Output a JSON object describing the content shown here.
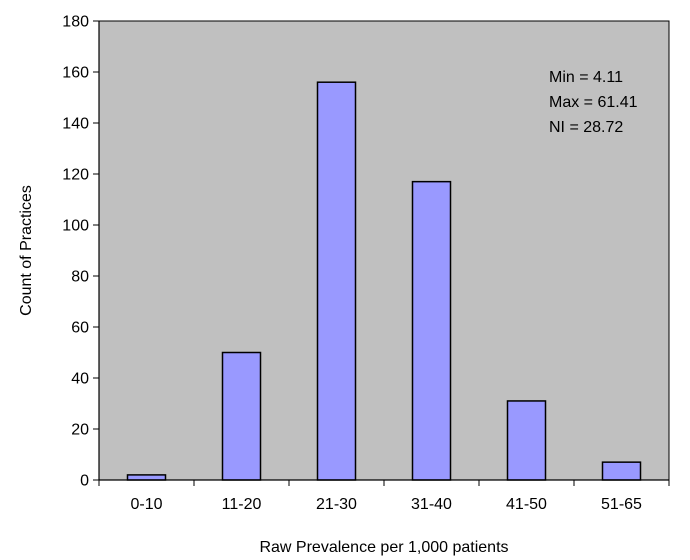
{
  "chart_data": {
    "type": "bar",
    "title": "",
    "xlabel": "Raw Prevalence per 1,000 patients",
    "ylabel": "Count of Practices",
    "categories": [
      "0-10",
      "11-20",
      "21-30",
      "31-40",
      "41-50",
      "51-65"
    ],
    "values": [
      2,
      50,
      156,
      117,
      31,
      7
    ],
    "ylim": [
      0,
      180
    ],
    "yticks": [
      0,
      20,
      40,
      60,
      80,
      100,
      120,
      140,
      160,
      180
    ],
    "grid": false,
    "legend": "none",
    "annotations": [
      "Min = 4.11",
      "Max = 61.41",
      "NI = 28.72"
    ],
    "colors": {
      "plot_background": "#c0c0c0",
      "bar_fill": "#9999ff",
      "bar_stroke": "#000000"
    }
  }
}
